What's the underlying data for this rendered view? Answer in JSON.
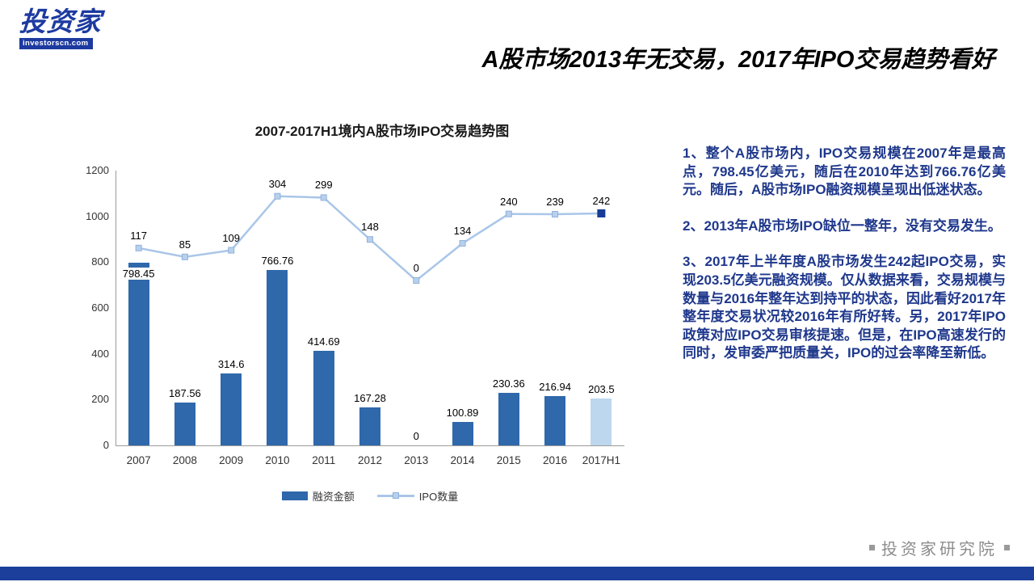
{
  "logo": {
    "name": "投资家",
    "domain": "investorscn.com"
  },
  "slide": {
    "title": "A股市场2013年无交易，2017年IPO交易趋势看好"
  },
  "chart_data": {
    "type": "bar+line",
    "title": "2007-2017H1境内A股市场IPO交易趋势图",
    "categories": [
      "2007",
      "2008",
      "2009",
      "2010",
      "2011",
      "2012",
      "2013",
      "2014",
      "2015",
      "2016",
      "2017H1"
    ],
    "series": [
      {
        "name": "融资金额",
        "type": "bar",
        "values": [
          798.45,
          187.56,
          314.6,
          766.76,
          414.69,
          167.28,
          0,
          100.89,
          230.36,
          216.94,
          203.5
        ]
      },
      {
        "name": "IPO数量",
        "type": "line",
        "values": [
          117,
          85,
          109,
          304,
          299,
          148,
          0,
          134,
          240,
          239,
          242
        ]
      }
    ],
    "xlabel": "",
    "ylabel": "",
    "y_ticks": [
      0,
      200,
      400,
      600,
      800,
      1000,
      1200
    ],
    "ylim": [
      0,
      1200
    ],
    "grid": false,
    "legend_position": "bottom"
  },
  "colors": {
    "bar": "#2F68AB",
    "bar_last": "#BDD7EE",
    "line": "#A9C6E8",
    "marker_fill": "#B9D0EC",
    "marker_border": "#8FB2DC",
    "marker_last": "#173C96",
    "body_text": "#1F388C",
    "footer_bar": "#1B3F9B",
    "logo_blue": "#1C3AA0"
  },
  "analysis": {
    "p1": "1、整个A股市场内，IPO交易规模在2007年是最高点，798.45亿美元，随后在2010年达到766.76亿美元。随后，A股市场IPO融资规模呈现出低迷状态。",
    "p2": "2、2013年A股市场IPO缺位一整年，没有交易发生。",
    "p3": "3、2017年上半年度A股市场发生242起IPO交易，实现203.5亿美元融资规模。仅从数据来看，交易规模与数量与2016年整年达到持平的状态，因此看好2017年整年度交易状况较2016年有所好转。另，2017年IPO政策对应IPO交易审核提速。但是，在IPO高速发行的同时，发审委严把质量关，IPO的过会率降至新低。"
  },
  "footer": {
    "label": "投资家研究院"
  }
}
